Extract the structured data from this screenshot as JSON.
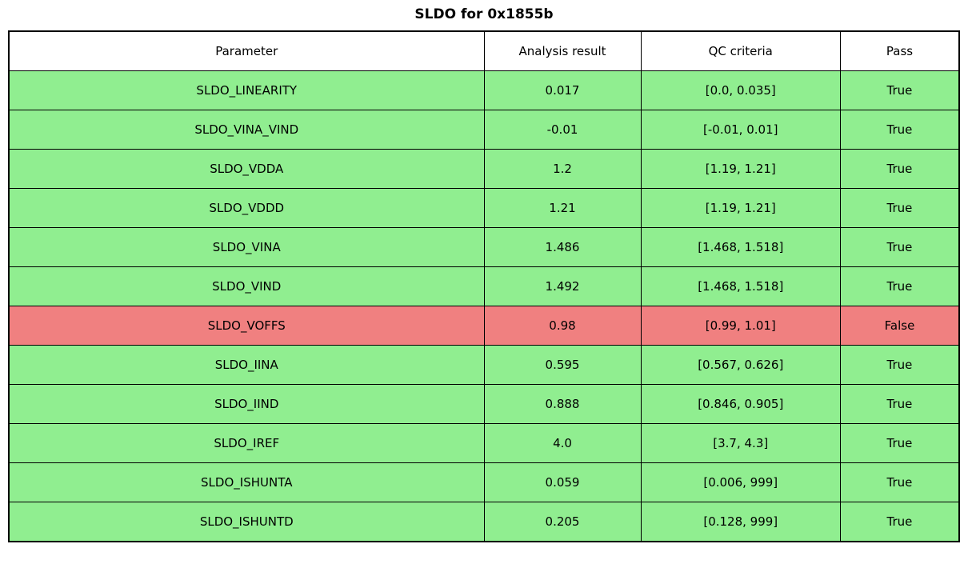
{
  "title": "SLDO for 0x1855b",
  "colors": {
    "pass_row": "#90ee90",
    "fail_row": "#f08080",
    "header_bg": "#ffffff",
    "border": "#000000"
  },
  "chart_data": {
    "type": "table",
    "title": "SLDO for 0x1855b",
    "columns": [
      "Parameter",
      "Analysis result",
      "QC criteria",
      "Pass"
    ],
    "rows": [
      {
        "parameter": "SLDO_LINEARITY",
        "result": "0.017",
        "criteria": "[0.0, 0.035]",
        "pass": "True",
        "status": "pass"
      },
      {
        "parameter": "SLDO_VINA_VIND",
        "result": "-0.01",
        "criteria": "[-0.01, 0.01]",
        "pass": "True",
        "status": "pass"
      },
      {
        "parameter": "SLDO_VDDA",
        "result": "1.2",
        "criteria": "[1.19, 1.21]",
        "pass": "True",
        "status": "pass"
      },
      {
        "parameter": "SLDO_VDDD",
        "result": "1.21",
        "criteria": "[1.19, 1.21]",
        "pass": "True",
        "status": "pass"
      },
      {
        "parameter": "SLDO_VINA",
        "result": "1.486",
        "criteria": "[1.468, 1.518]",
        "pass": "True",
        "status": "pass"
      },
      {
        "parameter": "SLDO_VIND",
        "result": "1.492",
        "criteria": "[1.468, 1.518]",
        "pass": "True",
        "status": "pass"
      },
      {
        "parameter": "SLDO_VOFFS",
        "result": "0.98",
        "criteria": "[0.99, 1.01]",
        "pass": "False",
        "status": "fail"
      },
      {
        "parameter": "SLDO_IINA",
        "result": "0.595",
        "criteria": "[0.567, 0.626]",
        "pass": "True",
        "status": "pass"
      },
      {
        "parameter": "SLDO_IIND",
        "result": "0.888",
        "criteria": "[0.846, 0.905]",
        "pass": "True",
        "status": "pass"
      },
      {
        "parameter": "SLDO_IREF",
        "result": "4.0",
        "criteria": "[3.7, 4.3]",
        "pass": "True",
        "status": "pass"
      },
      {
        "parameter": "SLDO_ISHUNTA",
        "result": "0.059",
        "criteria": "[0.006, 999]",
        "pass": "True",
        "status": "pass"
      },
      {
        "parameter": "SLDO_ISHUNTD",
        "result": "0.205",
        "criteria": "[0.128, 999]",
        "pass": "True",
        "status": "pass"
      }
    ]
  }
}
